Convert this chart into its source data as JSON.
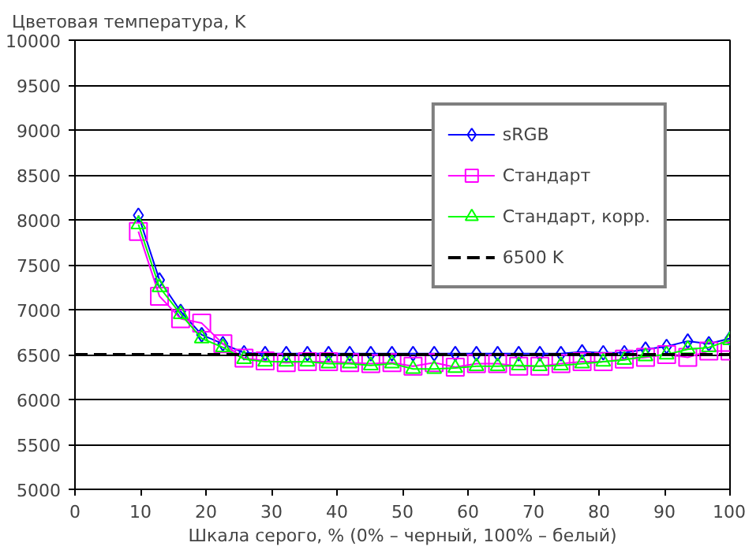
{
  "chart_data": {
    "type": "line",
    "ylabel": "Цветовая температура, K",
    "xlabel": "Шкала серого, % (0% – черный, 100% – белый)",
    "x": [
      9.68,
      12.9,
      16.13,
      19.35,
      22.58,
      25.81,
      29.03,
      32.26,
      35.48,
      38.71,
      41.94,
      45.16,
      48.39,
      51.61,
      54.84,
      58.06,
      61.29,
      64.52,
      67.74,
      70.97,
      74.19,
      77.42,
      80.65,
      83.87,
      87.1,
      90.32,
      93.55,
      96.77,
      100
    ],
    "xlim": [
      0,
      100
    ],
    "xticks": [
      0,
      10,
      20,
      30,
      40,
      50,
      60,
      70,
      80,
      90,
      100
    ],
    "ylim": [
      5000,
      10000
    ],
    "yticks": [
      5000,
      5500,
      6000,
      6500,
      7000,
      7500,
      8000,
      8500,
      9000,
      9500,
      10000
    ],
    "grid": "y",
    "legend": "top right",
    "line_style": "solid",
    "series": [
      {
        "name": "sRGB",
        "color": "#0000ff",
        "marker": "diamond",
        "values": [
          8050,
          7330,
          6980,
          6720,
          6620,
          6520,
          6510,
          6510,
          6510,
          6510,
          6510,
          6510,
          6510,
          6510,
          6510,
          6510,
          6510,
          6510,
          6510,
          6510,
          6510,
          6530,
          6520,
          6520,
          6560,
          6590,
          6650,
          6620,
          6680
        ]
      },
      {
        "name": "Стандарт",
        "color": "#ff00ff",
        "marker": "square",
        "values": [
          7870,
          7150,
          6900,
          6850,
          6620,
          6460,
          6430,
          6410,
          6420,
          6420,
          6410,
          6400,
          6410,
          6370,
          6410,
          6360,
          6400,
          6400,
          6370,
          6370,
          6400,
          6420,
          6420,
          6450,
          6470,
          6500,
          6470,
          6540,
          6540
        ]
      },
      {
        "name": "Стандарт, корр.",
        "color": "#00ff00",
        "marker": "triangle",
        "values": [
          7950,
          7250,
          6950,
          6680,
          6580,
          6450,
          6420,
          6420,
          6420,
          6400,
          6400,
          6380,
          6400,
          6340,
          6340,
          6350,
          6370,
          6370,
          6380,
          6370,
          6380,
          6400,
          6420,
          6440,
          6480,
          6500,
          6560,
          6580,
          6660
        ]
      },
      {
        "name": "6500 K",
        "color": "#000000",
        "marker": "none",
        "line_style": "dashed",
        "x": [
          0,
          100
        ],
        "values": [
          6500,
          6500
        ]
      }
    ]
  }
}
